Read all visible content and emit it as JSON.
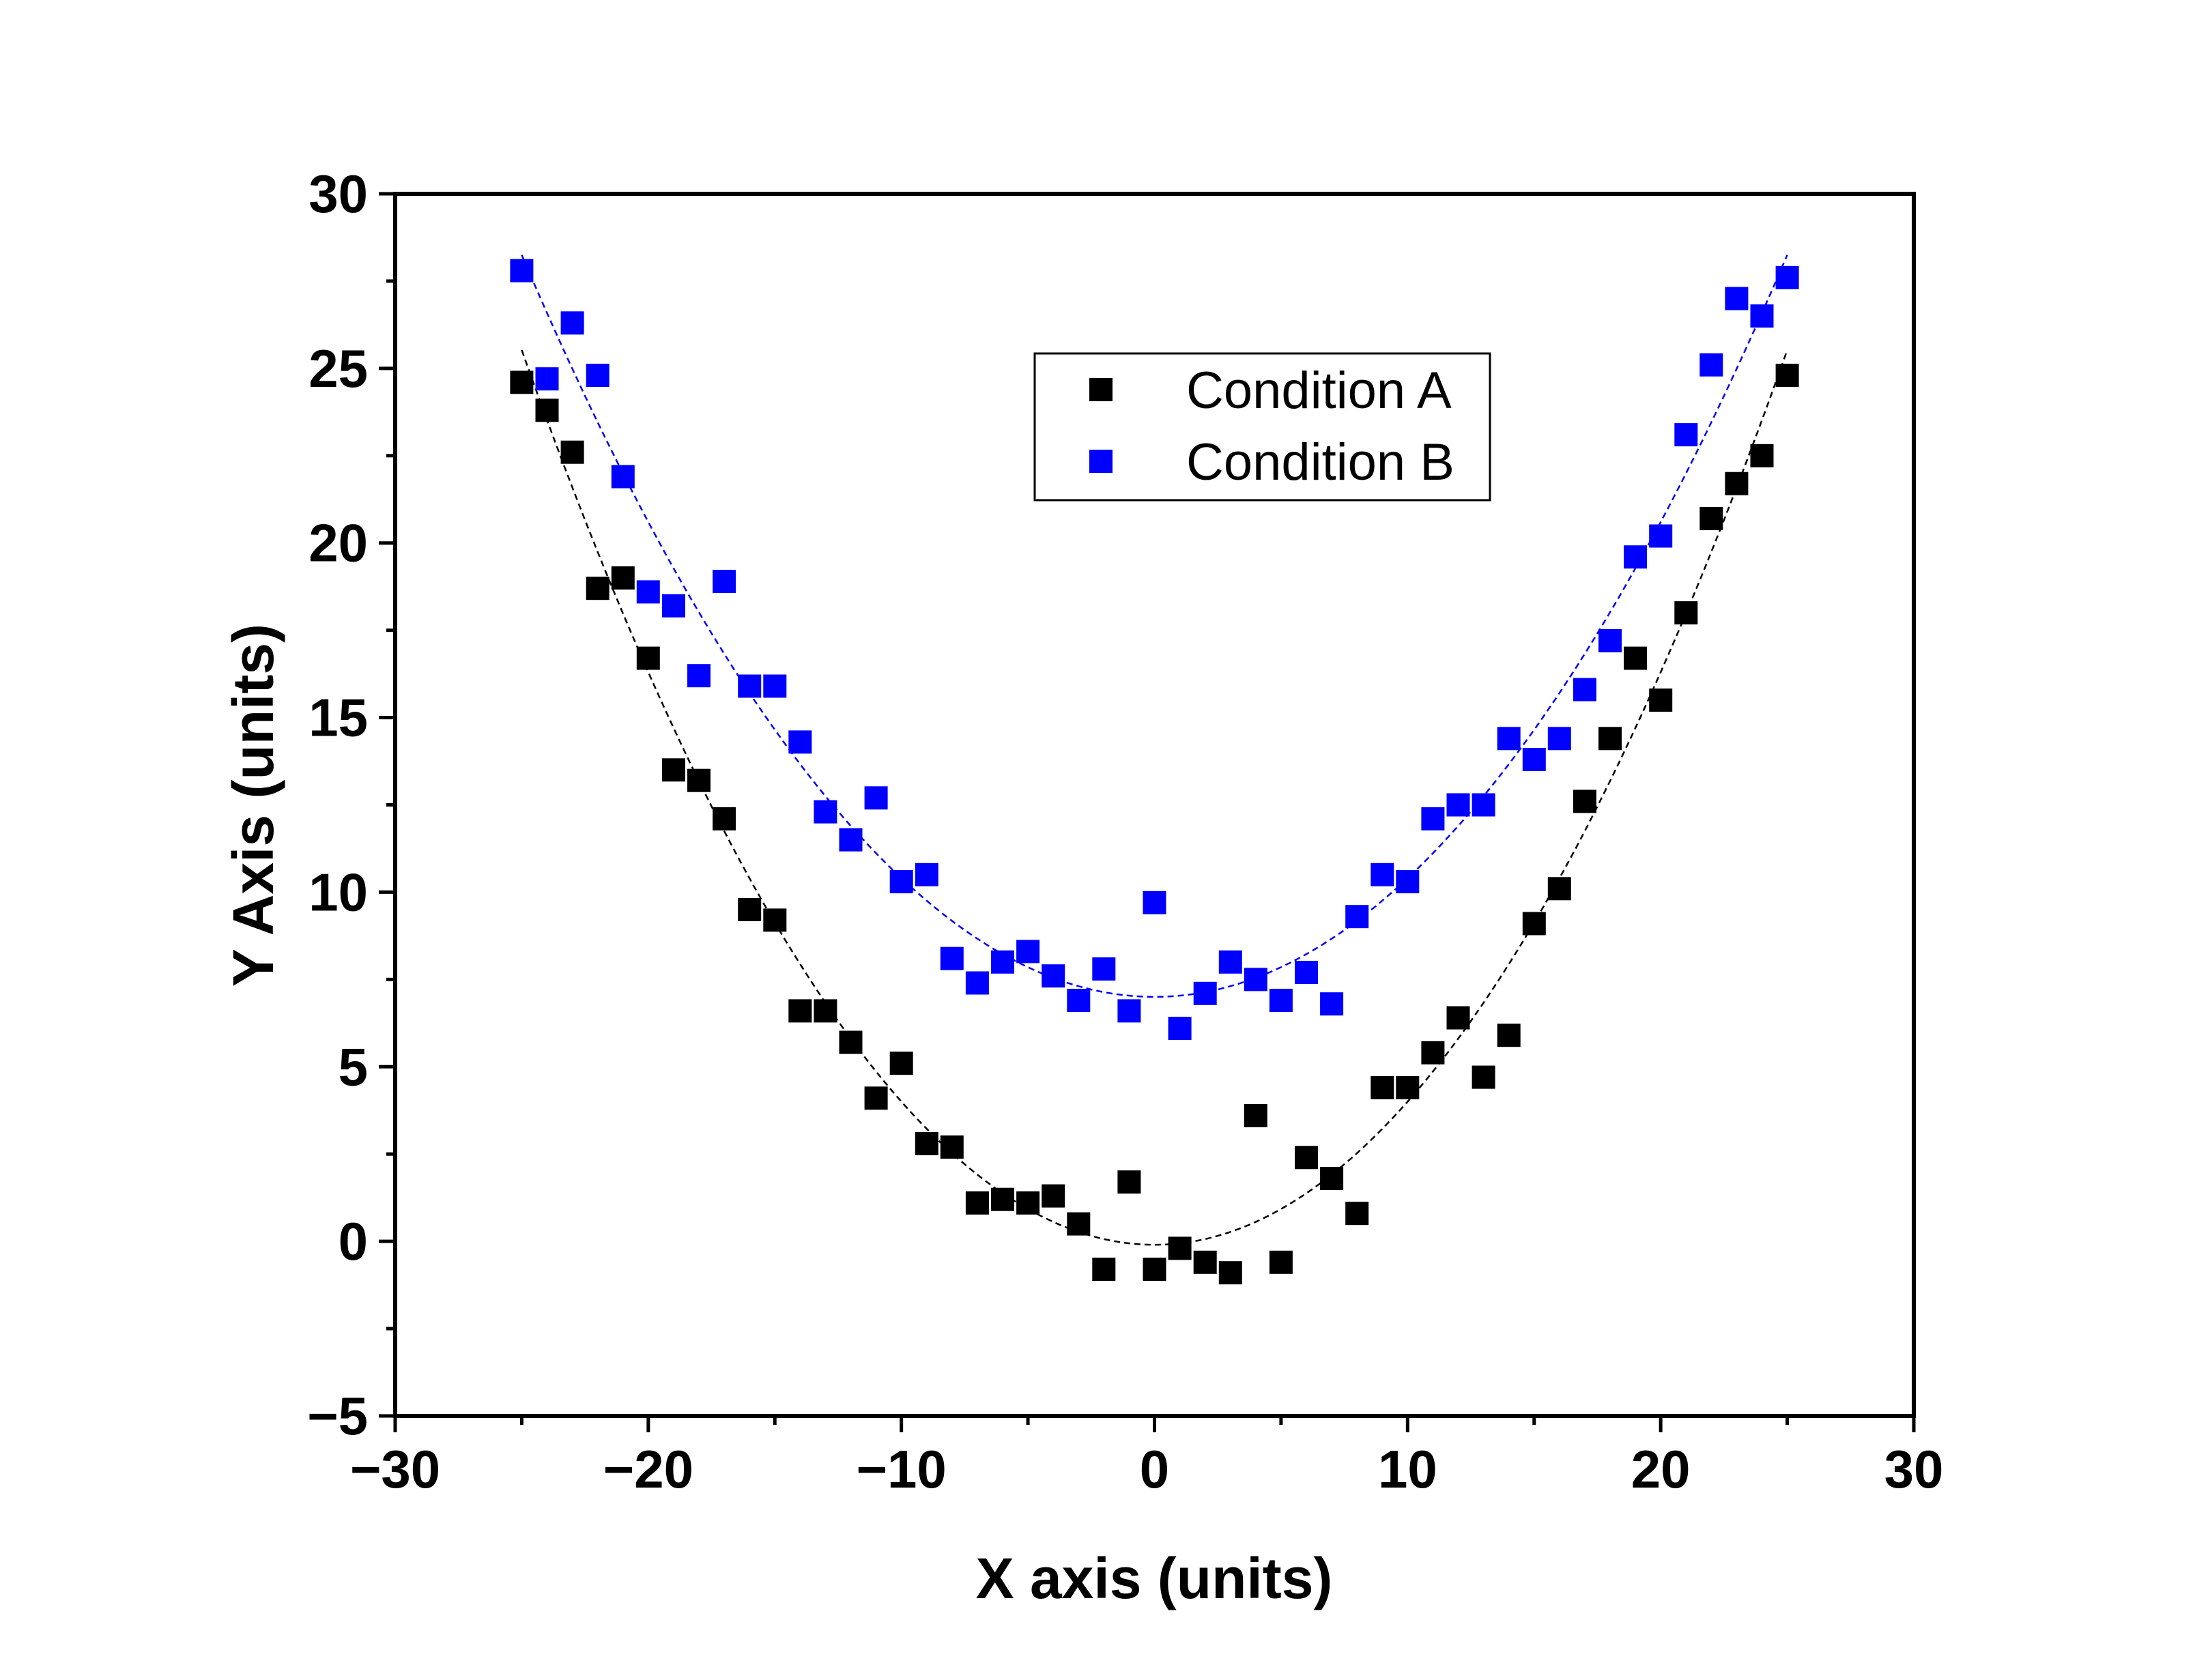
{
  "chart_data": {
    "type": "scatter",
    "title": "",
    "xlabel": "X axis (units)",
    "ylabel": "Y Axis (units)",
    "xlim": [
      -30,
      30
    ],
    "ylim": [
      -5,
      30
    ],
    "xticks": [
      -30,
      -20,
      -10,
      0,
      10,
      20,
      30
    ],
    "xtick_labels": [
      "−30",
      "−20",
      "−10",
      "0",
      "10",
      "20",
      "30"
    ],
    "yticks": [
      -5,
      0,
      5,
      10,
      15,
      20,
      25,
      30
    ],
    "ytick_labels": [
      "−5",
      "0",
      "5",
      "10",
      "15",
      "20",
      "25",
      "30"
    ],
    "grid": false,
    "legend_position": "top-center",
    "series": [
      {
        "name": "Condition A",
        "color": "#000000",
        "marker": "square",
        "fit": {
          "style": "dashed",
          "a": 0.041,
          "b": 0.0,
          "c": -0.1,
          "x_range": [
            -25,
            25
          ]
        },
        "points": [
          [
            -25,
            24.6
          ],
          [
            -24,
            23.8
          ],
          [
            -23,
            22.6
          ],
          [
            -22,
            18.7
          ],
          [
            -21,
            19.0
          ],
          [
            -20,
            16.7
          ],
          [
            -19,
            13.5
          ],
          [
            -18,
            13.2
          ],
          [
            -17,
            12.1
          ],
          [
            -16,
            9.5
          ],
          [
            -15,
            9.2
          ],
          [
            -14,
            6.6
          ],
          [
            -13,
            6.6
          ],
          [
            -12,
            5.7
          ],
          [
            -11,
            4.1
          ],
          [
            -10,
            5.1
          ],
          [
            -9,
            2.8
          ],
          [
            -8,
            2.7
          ],
          [
            -7,
            1.1
          ],
          [
            -6,
            1.2
          ],
          [
            -5,
            1.1
          ],
          [
            -4,
            1.3
          ],
          [
            -3,
            0.5
          ],
          [
            -2,
            -0.8
          ],
          [
            -1,
            1.7
          ],
          [
            0,
            -0.8
          ],
          [
            1,
            -0.2
          ],
          [
            2,
            -0.6
          ],
          [
            3,
            -0.9
          ],
          [
            4,
            3.6
          ],
          [
            5,
            -0.6
          ],
          [
            6,
            2.4
          ],
          [
            7,
            1.8
          ],
          [
            8,
            0.8
          ],
          [
            9,
            4.4
          ],
          [
            10,
            4.4
          ],
          [
            11,
            5.4
          ],
          [
            12,
            6.4
          ],
          [
            13,
            4.7
          ],
          [
            14,
            5.9
          ],
          [
            15,
            9.1
          ],
          [
            16,
            10.1
          ],
          [
            17,
            12.6
          ],
          [
            18,
            14.4
          ],
          [
            19,
            16.7
          ],
          [
            20,
            15.5
          ],
          [
            21,
            18.0
          ],
          [
            22,
            20.7
          ],
          [
            23,
            21.7
          ],
          [
            24,
            22.5
          ],
          [
            25,
            24.8
          ]
        ]
      },
      {
        "name": "Condition B",
        "color": "#0000ff",
        "marker": "square",
        "fit": {
          "style": "dashed",
          "a": 0.034,
          "b": 0.0,
          "c": 7.0,
          "x_range": [
            -25,
            25
          ]
        },
        "points": [
          [
            -25,
            27.8
          ],
          [
            -24,
            24.7
          ],
          [
            -23,
            26.3
          ],
          [
            -22,
            24.8
          ],
          [
            -21,
            21.9
          ],
          [
            -20,
            18.6
          ],
          [
            -19,
            18.2
          ],
          [
            -18,
            16.2
          ],
          [
            -17,
            18.9
          ],
          [
            -16,
            15.9
          ],
          [
            -15,
            15.9
          ],
          [
            -14,
            14.3
          ],
          [
            -13,
            12.3
          ],
          [
            -12,
            11.5
          ],
          [
            -11,
            12.7
          ],
          [
            -10,
            10.3
          ],
          [
            -9,
            10.5
          ],
          [
            -8,
            8.1
          ],
          [
            -7,
            7.4
          ],
          [
            -6,
            8.0
          ],
          [
            -5,
            8.3
          ],
          [
            -4,
            7.6
          ],
          [
            -3,
            6.9
          ],
          [
            -2,
            7.8
          ],
          [
            -1,
            6.6
          ],
          [
            0,
            9.7
          ],
          [
            1,
            6.1
          ],
          [
            2,
            7.1
          ],
          [
            3,
            8.0
          ],
          [
            4,
            7.5
          ],
          [
            5,
            6.9
          ],
          [
            6,
            7.7
          ],
          [
            7,
            6.8
          ],
          [
            8,
            9.3
          ],
          [
            9,
            10.5
          ],
          [
            10,
            10.3
          ],
          [
            11,
            12.1
          ],
          [
            12,
            12.5
          ],
          [
            13,
            12.5
          ],
          [
            14,
            14.4
          ],
          [
            15,
            13.8
          ],
          [
            16,
            14.4
          ],
          [
            17,
            15.8
          ],
          [
            18,
            17.2
          ],
          [
            19,
            19.6
          ],
          [
            20,
            20.2
          ],
          [
            21,
            23.1
          ],
          [
            22,
            25.1
          ],
          [
            23,
            27.0
          ],
          [
            24,
            26.5
          ],
          [
            25,
            27.6
          ]
        ]
      }
    ]
  }
}
